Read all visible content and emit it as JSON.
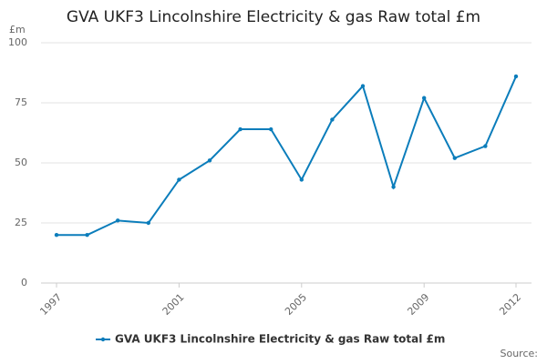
{
  "chart_data": {
    "type": "line",
    "title": "GVA UKF3 Lincolnshire Electricity & gas Raw total £m",
    "y_label": "£m",
    "source": "Source:",
    "x": [
      1997,
      1998,
      1999,
      2000,
      2001,
      2002,
      2003,
      2004,
      2005,
      2006,
      2007,
      2008,
      2009,
      2010,
      2011,
      2012
    ],
    "series": [
      {
        "name": "GVA UKF3 Lincolnshire Electricity & gas Raw total £m",
        "color": "#0b7dbb",
        "values": [
          20,
          20,
          26,
          25,
          43,
          51,
          64,
          64,
          43,
          68,
          82,
          40,
          77,
          52,
          57,
          86
        ]
      }
    ],
    "xlim": [
      1997,
      2012
    ],
    "xticks": [
      1997,
      2001,
      2005,
      2009,
      2012
    ],
    "ylim": [
      0,
      100
    ],
    "yticks": [
      0,
      25,
      50,
      75,
      100
    ],
    "grid": true
  }
}
